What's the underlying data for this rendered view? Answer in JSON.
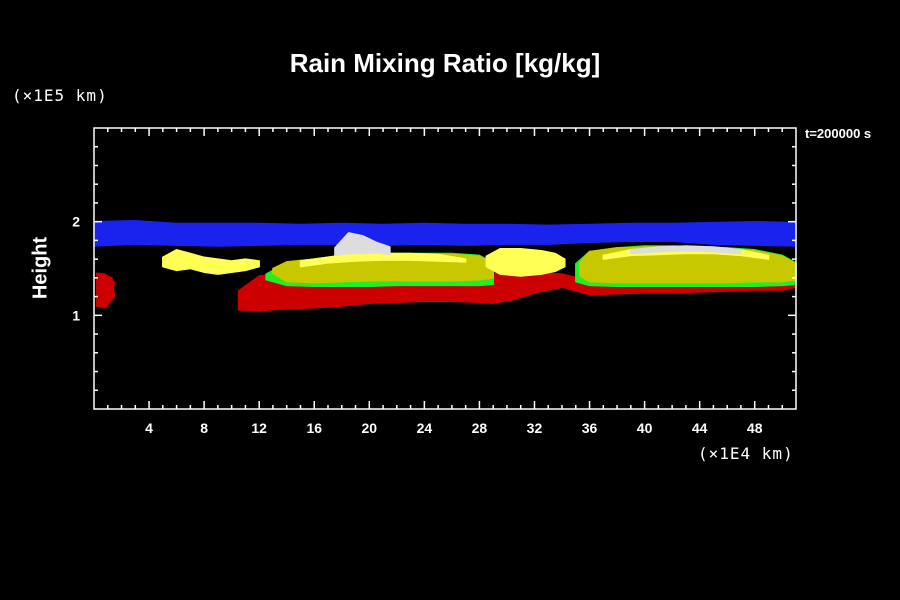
{
  "chart_data": {
    "type": "heatmap",
    "title": "Rain Mixing Ratio [kg/kg]",
    "ylabel": "Height",
    "xlabel": "",
    "y_unit": "(×1E5 km)",
    "x_unit": "(×1E4 km)",
    "time_label": "t=200000 s",
    "xlim": [
      0,
      51
    ],
    "ylim": [
      0,
      3
    ],
    "x_ticks": [
      4,
      8,
      12,
      16,
      20,
      24,
      28,
      32,
      36,
      40,
      44,
      48
    ],
    "y_ticks": [
      1,
      2
    ],
    "grid": false,
    "colors": {
      "background": "#000000",
      "level_low": "#cc0000",
      "level_edge": "#22ee22",
      "level_mid": "#c8c800",
      "level_high": "#ffff55",
      "level_peak": "#dddddd",
      "top_band": "#1a22ee"
    },
    "layers": [
      {
        "level": "top_band",
        "x": [
          0,
          3,
          6,
          9,
          12,
          15,
          18,
          21,
          24,
          27,
          30,
          33,
          36,
          39,
          42,
          45,
          48,
          51
        ],
        "y_bottom": [
          1.74,
          1.76,
          1.75,
          1.74,
          1.75,
          1.76,
          1.76,
          1.75,
          1.76,
          1.75,
          1.76,
          1.76,
          1.78,
          1.79,
          1.79,
          1.76,
          1.75,
          1.74
        ],
        "y_top": [
          2.0,
          2.01,
          1.98,
          1.98,
          1.98,
          1.97,
          1.98,
          1.97,
          1.98,
          1.97,
          1.97,
          1.96,
          1.97,
          1.98,
          1.98,
          1.99,
          2.0,
          1.99
        ]
      },
      {
        "level": "level_low",
        "x": [
          10.5,
          12,
          14,
          16,
          18,
          20,
          22,
          24,
          26,
          28,
          29,
          30.5,
          32,
          34,
          36,
          38,
          40,
          42,
          44,
          46,
          48,
          50,
          51
        ],
        "y_bottom": [
          1.06,
          1.05,
          1.07,
          1.08,
          1.1,
          1.13,
          1.14,
          1.15,
          1.15,
          1.14,
          1.13,
          1.17,
          1.24,
          1.3,
          1.22,
          1.23,
          1.24,
          1.24,
          1.25,
          1.26,
          1.27,
          1.27,
          1.3
        ],
        "y_top": [
          1.26,
          1.42,
          1.45,
          1.43,
          1.38,
          1.36,
          1.36,
          1.36,
          1.36,
          1.38,
          1.45,
          1.45,
          1.46,
          1.44,
          1.37,
          1.34,
          1.33,
          1.33,
          1.33,
          1.33,
          1.34,
          1.35,
          1.36
        ]
      },
      {
        "level": "level_low",
        "x": [
          0.2,
          0.8,
          1.5,
          1.3,
          0.2
        ],
        "y_bottom": [
          1.1,
          1.08,
          1.2,
          1.4,
          1.45
        ],
        "y_top": [
          1.45,
          1.44,
          1.35,
          1.25,
          1.1
        ]
      },
      {
        "level": "level_edge",
        "x": [
          12.5,
          14,
          16,
          18,
          20,
          22,
          24,
          26,
          28,
          29
        ],
        "y_bottom": [
          1.38,
          1.32,
          1.31,
          1.31,
          1.31,
          1.32,
          1.32,
          1.32,
          1.32,
          1.33
        ],
        "y_top": [
          1.44,
          1.56,
          1.6,
          1.64,
          1.66,
          1.66,
          1.66,
          1.66,
          1.64,
          1.56
        ]
      },
      {
        "level": "level_edge",
        "x": [
          35,
          36,
          38,
          40,
          42,
          44,
          46,
          48,
          50,
          51
        ],
        "y_bottom": [
          1.36,
          1.32,
          1.31,
          1.31,
          1.31,
          1.31,
          1.31,
          1.31,
          1.32,
          1.33
        ],
        "y_top": [
          1.55,
          1.68,
          1.72,
          1.74,
          1.74,
          1.73,
          1.72,
          1.7,
          1.64,
          1.56
        ]
      },
      {
        "level": "level_mid",
        "x": [
          13,
          14,
          16,
          18,
          20,
          22,
          24,
          26,
          28,
          29
        ],
        "y_bottom": [
          1.45,
          1.36,
          1.35,
          1.36,
          1.37,
          1.37,
          1.37,
          1.37,
          1.38,
          1.4
        ],
        "y_top": [
          1.5,
          1.57,
          1.6,
          1.64,
          1.65,
          1.65,
          1.65,
          1.65,
          1.63,
          1.56
        ]
      },
      {
        "level": "level_mid",
        "x": [
          35.3,
          36,
          38,
          40,
          42,
          44,
          46,
          48,
          50,
          51
        ],
        "y_bottom": [
          1.42,
          1.36,
          1.35,
          1.35,
          1.35,
          1.35,
          1.35,
          1.36,
          1.36,
          1.38
        ],
        "y_top": [
          1.56,
          1.68,
          1.72,
          1.73,
          1.73,
          1.72,
          1.71,
          1.69,
          1.63,
          1.55
        ]
      },
      {
        "level": "level_high",
        "x": [
          5,
          6,
          7,
          8,
          9,
          10,
          11,
          12
        ],
        "y_bottom": [
          1.52,
          1.48,
          1.5,
          1.46,
          1.44,
          1.46,
          1.48,
          1.52
        ],
        "y_top": [
          1.62,
          1.7,
          1.66,
          1.62,
          1.6,
          1.58,
          1.6,
          1.58
        ]
      },
      {
        "level": "level_high",
        "x": [
          28.5,
          29.5,
          31,
          32.5,
          33.5,
          34.2
        ],
        "y_bottom": [
          1.52,
          1.44,
          1.42,
          1.44,
          1.47,
          1.52
        ],
        "y_top": [
          1.63,
          1.71,
          1.71,
          1.69,
          1.66,
          1.6
        ]
      },
      {
        "level": "level_high",
        "x": [
          15,
          17,
          19,
          21,
          23,
          25,
          27
        ],
        "y_bottom": [
          1.52,
          1.56,
          1.58,
          1.59,
          1.59,
          1.58,
          1.57
        ],
        "y_top": [
          1.58,
          1.62,
          1.66,
          1.66,
          1.66,
          1.65,
          1.6
        ]
      },
      {
        "level": "level_high",
        "x": [
          37,
          39,
          41,
          43,
          45,
          47,
          49
        ],
        "y_bottom": [
          1.6,
          1.64,
          1.65,
          1.66,
          1.66,
          1.64,
          1.6
        ],
        "y_top": [
          1.64,
          1.7,
          1.72,
          1.72,
          1.71,
          1.7,
          1.64
        ]
      },
      {
        "level": "level_peak",
        "x": [
          17.5,
          18.5,
          19.5,
          20.5,
          21.5
        ],
        "y_bottom": [
          1.64,
          1.66,
          1.66,
          1.67,
          1.65
        ],
        "y_top": [
          1.72,
          1.88,
          1.85,
          1.78,
          1.73
        ]
      },
      {
        "level": "level_peak",
        "x": [
          39,
          41,
          43,
          45,
          47
        ],
        "y_bottom": [
          1.66,
          1.68,
          1.69,
          1.68,
          1.66
        ],
        "y_top": [
          1.7,
          1.73,
          1.74,
          1.73,
          1.7
        ]
      }
    ]
  }
}
